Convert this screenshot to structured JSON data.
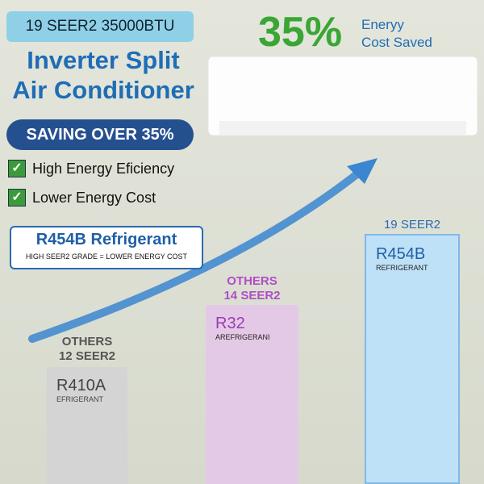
{
  "header": {
    "badge": "19 SEER2 35000BTU",
    "title_lines": [
      "Inverter Split",
      "Air Conditioner"
    ],
    "saving": "SAVING OVER 35%"
  },
  "features": [
    "High Energy Eficiency",
    "Lower Energy Cost"
  ],
  "refrigerant_box": {
    "title": "R454B Refrigerant",
    "subtitle": "HIGH SEER2 GRADE = LOWER ENERGY COST"
  },
  "highlight": {
    "percent": "35%",
    "lines": [
      "Eneryy",
      "Cost Saved"
    ]
  },
  "columns": [
    {
      "header": [
        "OTHERS",
        "12 SEER2"
      ],
      "name": "R410A",
      "sub": "EFRIGERANT"
    },
    {
      "header": [
        "OTHERS",
        "14 SEER2"
      ],
      "name": "R32",
      "sub": "AREFRIGERANI"
    },
    {
      "header": [
        "19 SEER2"
      ],
      "name": "R454B",
      "sub": "REFRIGERANT"
    }
  ]
}
